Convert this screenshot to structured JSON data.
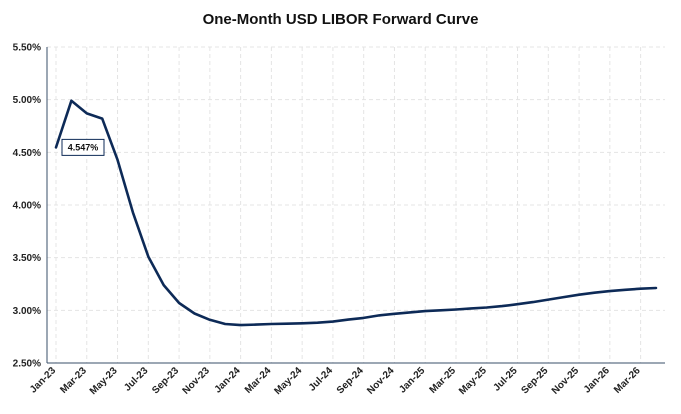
{
  "chart_data": {
    "type": "line",
    "title": "One-Month USD LIBOR Forward Curve",
    "xlabel": "",
    "ylabel": "",
    "ylim": [
      2.5,
      5.5
    ],
    "y_ticks": [
      "2.50%",
      "3.00%",
      "3.50%",
      "4.00%",
      "4.50%",
      "5.00%",
      "5.50%"
    ],
    "x_ticks": [
      "Jan-23",
      "Mar-23",
      "May-23",
      "Jul-23",
      "Sep-23",
      "Nov-23",
      "Jan-24",
      "Mar-24",
      "May-24",
      "Jul-24",
      "Sep-24",
      "Nov-24",
      "Jan-25",
      "Mar-25",
      "May-25",
      "Jul-25",
      "Sep-25",
      "Nov-25",
      "Jan-26",
      "Mar-26"
    ],
    "grid": true,
    "line_color": "#0d2a57",
    "series": [
      {
        "x": [
          "Jan-23",
          "Feb-23",
          "Mar-23",
          "Apr-23",
          "May-23",
          "Jun-23",
          "Jul-23",
          "Aug-23",
          "Sep-23",
          "Oct-23",
          "Nov-23",
          "Dec-23",
          "Jan-24",
          "Feb-24",
          "Mar-24",
          "Apr-24",
          "May-24",
          "Jun-24",
          "Jul-24",
          "Aug-24",
          "Sep-24",
          "Oct-24",
          "Nov-24",
          "Dec-24",
          "Jan-25",
          "Feb-25",
          "Mar-25",
          "Apr-25",
          "May-25",
          "Jun-25",
          "Jul-25",
          "Aug-25",
          "Sep-25",
          "Oct-25",
          "Nov-25",
          "Dec-25",
          "Jan-26",
          "Feb-26",
          "Mar-26",
          "Apr-26"
        ],
        "values": [
          4.547,
          4.99,
          4.87,
          4.82,
          4.43,
          3.93,
          3.51,
          3.24,
          3.07,
          2.97,
          2.91,
          2.87,
          2.86,
          2.865,
          2.87,
          2.873,
          2.877,
          2.883,
          2.893,
          2.912,
          2.928,
          2.952,
          2.967,
          2.98,
          2.993,
          3.0,
          3.008,
          3.018,
          3.027,
          3.04,
          3.058,
          3.078,
          3.102,
          3.126,
          3.148,
          3.167,
          3.183,
          3.195,
          3.205,
          3.212
        ]
      }
    ],
    "annotations": [
      {
        "text": "4.547%",
        "x": "Jan-23",
        "y": 4.547
      }
    ]
  }
}
